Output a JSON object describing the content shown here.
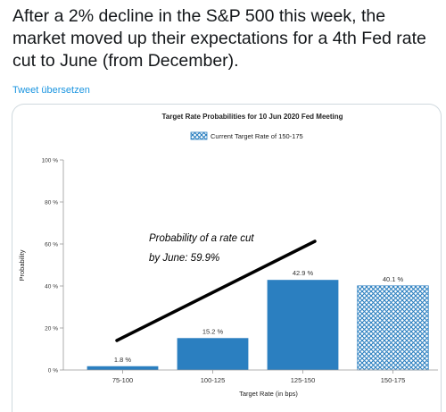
{
  "tweet": {
    "text": "After a 2% decline in the S&P 500 this week, the market moved up their expectations for a 4th Fed rate cut to June (from December).",
    "translate_label": "Tweet übersetzen"
  },
  "chart_data": {
    "type": "bar",
    "title": "Target Rate Probabilities for 10 Jun 2020 Fed Meeting",
    "legend": {
      "label": "Current Target Rate of 150-175",
      "placement": "top-center"
    },
    "xlabel": "Target Rate (in bps)",
    "ylabel": "Probability",
    "ylim": [
      0,
      100
    ],
    "yticks": [
      0,
      20,
      40,
      60,
      80,
      100
    ],
    "ytick_labels": [
      "0 %",
      "20 %",
      "40 %",
      "60 %",
      "80 %",
      "100 %"
    ],
    "grid": false,
    "categories": [
      "75-100",
      "100-125",
      "125-150",
      "150-175"
    ],
    "values": [
      1.8,
      15.2,
      42.9,
      40.1
    ],
    "value_labels": [
      "1.8 %",
      "15.2 %",
      "42.9 %",
      "40.1 %"
    ],
    "current_category": "150-175",
    "annotation": {
      "lines": [
        "Probability of a rate cut",
        "by June: 59.9%"
      ]
    }
  },
  "colors": {
    "bar": "#2b7fc0",
    "hatch": "#2b7fc0",
    "text": "#14171a",
    "link": "#1b95e0",
    "axis": "#999999",
    "annotation_line": "#000000"
  }
}
